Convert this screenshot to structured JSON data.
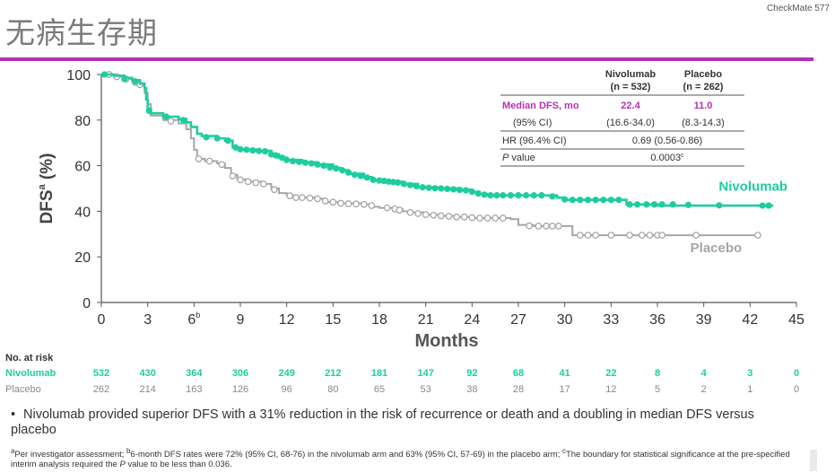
{
  "header": {
    "title": "无病生存期",
    "corner_label": "CheckMate 577"
  },
  "colors": {
    "accent": "#b72fb5",
    "nivolumab": "#1dcd9f",
    "placebo": "#a6a6a6"
  },
  "stats_table": {
    "col1_header_line1": "Nivolumab",
    "col1_header_line2": "(n = 532)",
    "col2_header_line1": "Placebo",
    "col2_header_line2": "(n = 262)",
    "row1_label": "Median DFS, mo",
    "row1_niv": "22.4",
    "row1_pbo": "11.0",
    "row2_label": "(95% CI)",
    "row2_niv": "(16.6-34.0)",
    "row2_pbo": "(8.3-14.3)",
    "row3_label": "HR (96.4% CI)",
    "row3_value": "0.69 (0.56-0.86)",
    "row4_label_italic": "P",
    "row4_label_rest": " value",
    "row4_value": "0.0003",
    "row4_sup": "c"
  },
  "risk_table": {
    "header": "No. at risk",
    "rows": [
      {
        "label": "Nivolumab",
        "values": [
          "532",
          "430",
          "364",
          "306",
          "249",
          "212",
          "181",
          "147",
          "92",
          "68",
          "41",
          "22",
          "8",
          "4",
          "3",
          "0"
        ]
      },
      {
        "label": "Placebo",
        "values": [
          "262",
          "214",
          "163",
          "126",
          "96",
          "80",
          "65",
          "53",
          "38",
          "28",
          "17",
          "12",
          "5",
          "2",
          "1",
          "0"
        ]
      }
    ]
  },
  "chart_data": {
    "type": "line",
    "xlabel": "Months",
    "ylabel": "DFS",
    "ylabel_sup": "a",
    "ylabel_suffix": " (%)",
    "xlim": [
      0,
      45
    ],
    "ylim": [
      0,
      100
    ],
    "xticks": [
      "0",
      "3",
      "6",
      "9",
      "12",
      "15",
      "18",
      "21",
      "24",
      "27",
      "30",
      "33",
      "36",
      "39",
      "42",
      "45"
    ],
    "xtick_6_sup": "b",
    "yticks": [
      "0",
      "20",
      "40",
      "60",
      "80",
      "100"
    ],
    "grid": false,
    "series": [
      {
        "name": "Nivolumab",
        "color": "#1dcd9f",
        "points": [
          [
            0,
            100
          ],
          [
            0.8,
            99.5
          ],
          [
            1.5,
            98.5
          ],
          [
            2,
            97.5
          ],
          [
            2.5,
            96
          ],
          [
            2.8,
            94
          ],
          [
            2.9,
            89
          ],
          [
            3,
            85
          ],
          [
            3.2,
            83
          ],
          [
            4,
            81.5
          ],
          [
            5,
            80.5
          ],
          [
            5.5,
            79
          ],
          [
            5.8,
            77
          ],
          [
            6.2,
            74
          ],
          [
            6.5,
            73
          ],
          [
            7.5,
            72
          ],
          [
            8,
            71
          ],
          [
            8.5,
            68
          ],
          [
            9,
            67
          ],
          [
            10,
            66.5
          ],
          [
            11,
            65
          ],
          [
            11.5,
            63.5
          ],
          [
            12,
            62.5
          ],
          [
            13,
            61.5
          ],
          [
            14,
            60.5
          ],
          [
            15,
            59
          ],
          [
            15.5,
            58
          ],
          [
            16,
            56.5
          ],
          [
            17,
            55
          ],
          [
            17.5,
            53.5
          ],
          [
            18.5,
            53
          ],
          [
            19.5,
            52
          ],
          [
            20.5,
            50.5
          ],
          [
            22,
            50
          ],
          [
            23,
            49.5
          ],
          [
            24,
            48.5
          ],
          [
            24.5,
            47.5
          ],
          [
            25,
            47
          ],
          [
            29,
            47
          ],
          [
            29.5,
            46
          ],
          [
            30,
            45
          ],
          [
            31,
            45
          ],
          [
            33.5,
            45
          ],
          [
            34,
            43
          ],
          [
            36,
            42.5
          ],
          [
            43.5,
            42.5
          ]
        ],
        "censor": [
          [
            0.2,
            100
          ],
          [
            1.5,
            98
          ],
          [
            2.2,
            97
          ],
          [
            3.1,
            84
          ],
          [
            4.2,
            81.5
          ],
          [
            5.3,
            80
          ],
          [
            6.8,
            72.5
          ],
          [
            7.5,
            72
          ],
          [
            8.2,
            71
          ],
          [
            8.7,
            68
          ],
          [
            9,
            67.2
          ],
          [
            9.4,
            67
          ],
          [
            9.8,
            66.7
          ],
          [
            10.2,
            66.5
          ],
          [
            10.6,
            66.3
          ],
          [
            11,
            65
          ],
          [
            11.3,
            64.5
          ],
          [
            11.7,
            63.5
          ],
          [
            12,
            62.5
          ],
          [
            12.4,
            62
          ],
          [
            12.8,
            61.7
          ],
          [
            13.2,
            61.3
          ],
          [
            13.6,
            61
          ],
          [
            14,
            60.5
          ],
          [
            14.4,
            60
          ],
          [
            14.8,
            59.2
          ],
          [
            15.2,
            58.8
          ],
          [
            15.6,
            58
          ],
          [
            16,
            57
          ],
          [
            16.4,
            56
          ],
          [
            16.8,
            55.5
          ],
          [
            17.2,
            54.8
          ],
          [
            17.6,
            53.8
          ],
          [
            18,
            53.5
          ],
          [
            18.3,
            53.3
          ],
          [
            18.6,
            53
          ],
          [
            18.9,
            52.8
          ],
          [
            19.2,
            52.6
          ],
          [
            19.6,
            52
          ],
          [
            20,
            51.5
          ],
          [
            20.4,
            51
          ],
          [
            20.8,
            50.5
          ],
          [
            21.2,
            50.3
          ],
          [
            21.6,
            50.1
          ],
          [
            22,
            50
          ],
          [
            22.4,
            49.8
          ],
          [
            22.8,
            49.6
          ],
          [
            23.2,
            49.4
          ],
          [
            23.6,
            49.2
          ],
          [
            24,
            48.6
          ],
          [
            24.4,
            47.8
          ],
          [
            24.8,
            47.3
          ],
          [
            25.2,
            47
          ],
          [
            25.6,
            47
          ],
          [
            26,
            47
          ],
          [
            26.5,
            47
          ],
          [
            27,
            47
          ],
          [
            27.5,
            47
          ],
          [
            28,
            47
          ],
          [
            28.5,
            47
          ],
          [
            29.2,
            46.5
          ],
          [
            30,
            45.2
          ],
          [
            30.5,
            45
          ],
          [
            31,
            45
          ],
          [
            31.5,
            45
          ],
          [
            32,
            45
          ],
          [
            32.5,
            45
          ],
          [
            33,
            45
          ],
          [
            33.5,
            45
          ],
          [
            34.2,
            43
          ],
          [
            34.7,
            43
          ],
          [
            35.3,
            43
          ],
          [
            35.8,
            43
          ],
          [
            36.3,
            43
          ],
          [
            37,
            43
          ],
          [
            38,
            42.8
          ],
          [
            40,
            42.6
          ],
          [
            42.8,
            42.5
          ],
          [
            43.2,
            42.5
          ]
        ]
      },
      {
        "name": "Placebo",
        "color": "#a6a6a6",
        "points": [
          [
            0,
            100
          ],
          [
            1,
            99
          ],
          [
            1.5,
            98
          ],
          [
            2,
            97
          ],
          [
            2.5,
            95
          ],
          [
            2.8,
            92
          ],
          [
            3,
            87
          ],
          [
            3.2,
            82
          ],
          [
            4,
            80
          ],
          [
            5,
            78.5
          ],
          [
            5.5,
            76
          ],
          [
            5.8,
            72
          ],
          [
            6,
            67
          ],
          [
            6.2,
            63
          ],
          [
            6.7,
            62
          ],
          [
            7.5,
            61
          ],
          [
            8,
            59
          ],
          [
            8.4,
            56
          ],
          [
            8.8,
            54
          ],
          [
            9.5,
            53
          ],
          [
            10.5,
            52
          ],
          [
            11,
            50
          ],
          [
            11.5,
            48
          ],
          [
            12,
            47
          ],
          [
            12.5,
            46
          ],
          [
            14,
            45.5
          ],
          [
            14.5,
            44
          ],
          [
            15.5,
            43.5
          ],
          [
            17,
            43
          ],
          [
            17.5,
            42
          ],
          [
            18,
            41.5
          ],
          [
            19,
            41
          ],
          [
            19.5,
            40
          ],
          [
            20,
            39.5
          ],
          [
            21,
            38.5
          ],
          [
            22,
            38
          ],
          [
            23,
            37.5
          ],
          [
            24,
            37
          ],
          [
            25,
            37
          ],
          [
            26.5,
            36.5
          ],
          [
            27,
            34
          ],
          [
            28,
            33.5
          ],
          [
            30,
            33.5
          ],
          [
            30.5,
            29.5
          ],
          [
            35,
            29.5
          ],
          [
            42.5,
            29.5
          ]
        ],
        "censor": [
          [
            0.5,
            100
          ],
          [
            1,
            99
          ],
          [
            1.6,
            98
          ],
          [
            2.2,
            96.5
          ],
          [
            2.5,
            95.5
          ],
          [
            4.5,
            79.5
          ],
          [
            6.3,
            63
          ],
          [
            7,
            62
          ],
          [
            7.8,
            60.5
          ],
          [
            8.5,
            55.5
          ],
          [
            9,
            53.8
          ],
          [
            9.5,
            53
          ],
          [
            10,
            52.5
          ],
          [
            10.5,
            52
          ],
          [
            11.2,
            49.5
          ],
          [
            12.2,
            46.8
          ],
          [
            12.6,
            46
          ],
          [
            13,
            46
          ],
          [
            13.5,
            45.8
          ],
          [
            14,
            45.5
          ],
          [
            14.5,
            44.5
          ],
          [
            15,
            44
          ],
          [
            15.5,
            43.5
          ],
          [
            16,
            43.3
          ],
          [
            16.5,
            43.2
          ],
          [
            17,
            43
          ],
          [
            17.5,
            42.5
          ],
          [
            18.5,
            41.5
          ],
          [
            19,
            41
          ],
          [
            19.3,
            40.5
          ],
          [
            20,
            39.5
          ],
          [
            20.5,
            39
          ],
          [
            21,
            38.5
          ],
          [
            21.5,
            38.3
          ],
          [
            22,
            38
          ],
          [
            22.5,
            37.8
          ],
          [
            23,
            37.5
          ],
          [
            23.5,
            37.5
          ],
          [
            24,
            37.2
          ],
          [
            24.5,
            37
          ],
          [
            25,
            37
          ],
          [
            25.5,
            37
          ],
          [
            26,
            37
          ],
          [
            27.7,
            33.6
          ],
          [
            28.3,
            33.5
          ],
          [
            28.8,
            33.5
          ],
          [
            29.2,
            33.5
          ],
          [
            29.6,
            33.5
          ],
          [
            31,
            29.5
          ],
          [
            31.5,
            29.5
          ],
          [
            32,
            29.5
          ],
          [
            33,
            29.5
          ],
          [
            34.2,
            29.5
          ],
          [
            35,
            29.5
          ],
          [
            35.5,
            29.5
          ],
          [
            36,
            29.5
          ],
          [
            36.3,
            29.5
          ],
          [
            38.5,
            29.5
          ],
          [
            42.5,
            29.5
          ]
        ]
      }
    ],
    "series_labels": {
      "nivolumab": {
        "text": "Nivolumab",
        "x": 42.2,
        "y": 49
      },
      "placebo": {
        "text": "Placebo",
        "x": 39.8,
        "y": 22
      }
    }
  },
  "bullet": {
    "marker": "•",
    "text": "Nivolumab provided superior DFS with a 31% reduction in the risk of recurrence or death and a doubling in median DFS versus placebo"
  },
  "footnote": {
    "sup_a": "a",
    "part1": "Per investigator assessment; ",
    "sup_b": "b",
    "part2": "6-month DFS rates were 72% (95% CI, 68-76) in the nivolumab arm and 63% (95% CI, 57-69) in the placebo arm; ",
    "sup_c": "c",
    "part3": "The boundary for statistical significance at the pre-specified interim analysis required the ",
    "italic_p": "P",
    "part4": " value to be less than 0.036."
  }
}
